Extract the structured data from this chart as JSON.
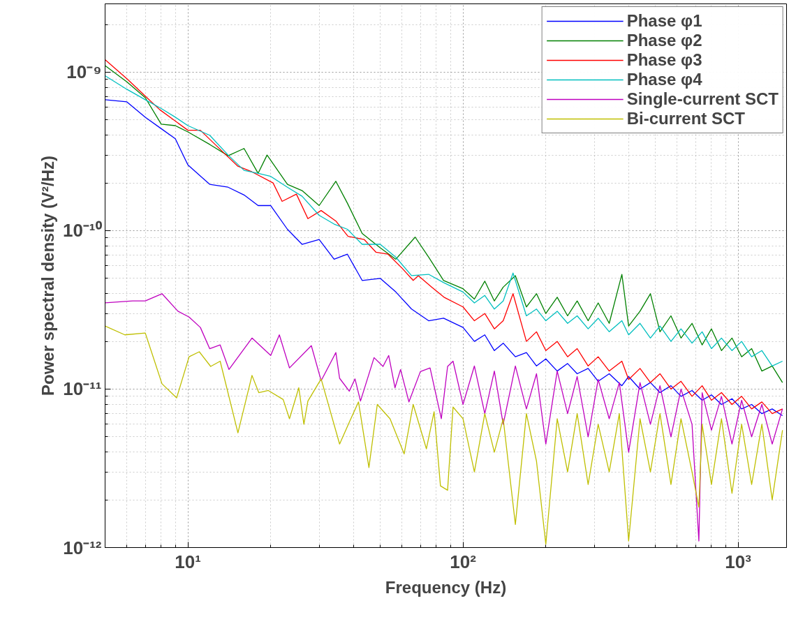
{
  "chart_data": {
    "type": "line",
    "xlabel": "Frequency (Hz)",
    "ylabel": "Power spectral density (V²/Hz)",
    "log": "xy",
    "grid": true,
    "legend": "top right",
    "line_style": "solid",
    "marker": "none",
    "xlim": [
      5,
      1500
    ],
    "ylim": [
      1e-12,
      2.7e-09
    ],
    "xticks": [
      {
        "value": 10,
        "label": "10¹"
      },
      {
        "value": 100,
        "label": "10²"
      },
      {
        "value": 1000,
        "label": "10³"
      }
    ],
    "yticks": [
      {
        "value": 1e-12,
        "label": "10⁻¹²"
      },
      {
        "value": 1e-11,
        "label": "10⁻¹¹"
      },
      {
        "value": 1e-10,
        "label": "10⁻¹⁰"
      },
      {
        "value": 1e-09,
        "label": "10⁻⁹"
      }
    ],
    "series": [
      {
        "name": "Phase φ1",
        "color": "#0000ff",
        "x": [
          5,
          6,
          7,
          8,
          9,
          10,
          12,
          14,
          16,
          18,
          20,
          23,
          26,
          30,
          34,
          38,
          43,
          50,
          57,
          65,
          75,
          85,
          100,
          110,
          120,
          130,
          140,
          155,
          170,
          185,
          200,
          220,
          240,
          260,
          285,
          310,
          340,
          378,
          400,
          440,
          480,
          520,
          570,
          620,
          680,
          740,
          800,
          870,
          950,
          1030,
          1120,
          1220,
          1330,
          1450
        ],
        "values": [
          6.7e-10,
          6.5e-10,
          5.2e-10,
          4.4e-10,
          3.8e-10,
          2.6e-10,
          1.96e-10,
          1.88e-10,
          1.68e-10,
          1.44e-10,
          1.44e-10,
          1.02e-10,
          8.2e-11,
          8.8e-11,
          6.6e-11,
          7.1e-11,
          4.85e-11,
          5e-11,
          4.1e-11,
          3.2e-11,
          2.7e-11,
          2.8e-11,
          2.45e-11,
          2e-11,
          2.2e-11,
          1.75e-11,
          1.95e-11,
          1.6e-11,
          1.7e-11,
          1.4e-11,
          1.55e-11,
          1.3e-11,
          1.45e-11,
          1.25e-11,
          1.35e-11,
          1.12e-11,
          1.25e-11,
          1.05e-11,
          1.2e-11,
          1e-11,
          1.1e-11,
          9.5e-12,
          1.05e-11,
          9e-12,
          9.8e-12,
          8.5e-12,
          9.2e-12,
          8e-12,
          8.7e-12,
          7.5e-12,
          8e-12,
          7e-12,
          7.5e-12,
          6.8e-12
        ]
      },
      {
        "name": "Phase φ2",
        "color": "#008000",
        "x": [
          5,
          6,
          7,
          8,
          9,
          10,
          12,
          14,
          16,
          18,
          19.4,
          23,
          26,
          30,
          34.5,
          38,
          43,
          50,
          57,
          67,
          75,
          85,
          100,
          110,
          120,
          130,
          140,
          155,
          170,
          185,
          200,
          220,
          240,
          260,
          285,
          310,
          340,
          378,
          400,
          440,
          480,
          520,
          570,
          620,
          680,
          740,
          800,
          870,
          950,
          1030,
          1120,
          1220,
          1330,
          1450
        ],
        "values": [
          1.1e-09,
          8.7e-10,
          6.9e-10,
          4.7e-10,
          4.6e-10,
          4.2e-10,
          3.5e-10,
          2.97e-10,
          3.3e-10,
          2.3e-10,
          3e-10,
          1.96e-10,
          1.79e-10,
          1.44e-10,
          2.05e-10,
          1.49e-10,
          9.6e-11,
          7.8e-11,
          6.6e-11,
          9.1e-11,
          6.8e-11,
          4.85e-11,
          4.3e-11,
          3.7e-11,
          4.8e-11,
          3.6e-11,
          4.4e-11,
          5.2e-11,
          3.3e-11,
          4e-11,
          3e-11,
          3.8e-11,
          2.9e-11,
          3.6e-11,
          2.7e-11,
          3.5e-11,
          2.6e-11,
          5.3e-11,
          2.5e-11,
          3.1e-11,
          4e-11,
          2.3e-11,
          2.9e-11,
          2.1e-11,
          2.6e-11,
          1.9e-11,
          2.4e-11,
          1.75e-11,
          2.1e-11,
          1.6e-11,
          1.8e-11,
          1.3e-11,
          1.4e-11,
          1.1e-11
        ]
      },
      {
        "name": "Phase φ3",
        "color": "#ff0000",
        "x": [
          5,
          6,
          7.1,
          7.9,
          10,
          11.1,
          13.5,
          15.2,
          17.1,
          20.4,
          22,
          24.8,
          27.3,
          30.5,
          34.5,
          38.2,
          43.7,
          48.3,
          53.4,
          60,
          65.9,
          68.8,
          77,
          85.3,
          100,
          110,
          120,
          130,
          140,
          152,
          170,
          185,
          200,
          220,
          240,
          260,
          285,
          310,
          340,
          378,
          400,
          440,
          480,
          520,
          570,
          620,
          680,
          740,
          800,
          870,
          950,
          1030,
          1120,
          1220,
          1330,
          1450
        ],
        "values": [
          1.2e-09,
          9.1e-10,
          6.9e-10,
          5.8e-10,
          4.3e-10,
          4.3e-10,
          3.1e-10,
          2.55e-10,
          2.35e-10,
          2e-10,
          1.53e-10,
          1.7e-10,
          1.19e-10,
          1.34e-10,
          1.15e-10,
          9.2e-11,
          8.8e-11,
          7.3e-11,
          7.1e-11,
          5.8e-11,
          4.85e-11,
          5.2e-11,
          4.4e-11,
          3.8e-11,
          3.3e-11,
          2.7e-11,
          3e-11,
          2.4e-11,
          2.7e-11,
          4e-11,
          2e-11,
          2.3e-11,
          1.75e-11,
          2e-11,
          1.6e-11,
          1.8e-11,
          1.4e-11,
          1.6e-11,
          1.3e-11,
          1.5e-11,
          1.15e-11,
          1.35e-11,
          1.1e-11,
          1.25e-11,
          1e-11,
          1.12e-11,
          9e-12,
          1.05e-11,
          8.5e-12,
          9.5e-12,
          8e-12,
          9e-12,
          7.5e-12,
          8.3e-12,
          7e-12,
          7.5e-12
        ]
      },
      {
        "name": "Phase φ4",
        "color": "#00bfbf",
        "x": [
          5,
          6,
          7,
          8,
          9,
          10,
          12,
          14,
          16,
          18,
          20,
          23,
          26,
          30,
          34,
          38,
          43,
          50,
          57,
          65,
          75,
          85,
          100,
          110,
          120,
          130,
          140,
          152,
          170,
          185,
          200,
          220,
          240,
          260,
          285,
          310,
          340,
          378,
          400,
          440,
          480,
          520,
          570,
          620,
          680,
          740,
          800,
          870,
          950,
          1030,
          1120,
          1220,
          1330,
          1450
        ],
        "values": [
          9.5e-10,
          7.8e-10,
          6.7e-10,
          5.9e-10,
          5.2e-10,
          4.6e-10,
          4e-10,
          3e-10,
          2.4e-10,
          2.3e-10,
          2.2e-10,
          1.88e-10,
          1.65e-10,
          1.25e-10,
          1.1e-10,
          1.02e-10,
          8.2e-11,
          8.2e-11,
          6.8e-11,
          5.2e-11,
          5.3e-11,
          4.7e-11,
          4.1e-11,
          3.5e-11,
          3.9e-11,
          3.2e-11,
          3.6e-11,
          5.4e-11,
          2.9e-11,
          3.2e-11,
          2.7e-11,
          3.1e-11,
          2.6e-11,
          2.9e-11,
          2.4e-11,
          2.8e-11,
          2.3e-11,
          2.7e-11,
          2.2e-11,
          2.6e-11,
          2.1e-11,
          2.5e-11,
          2e-11,
          2.4e-11,
          1.95e-11,
          2.3e-11,
          1.8e-11,
          2.1e-11,
          1.75e-11,
          2e-11,
          1.6e-11,
          1.75e-11,
          1.4e-11,
          1.5e-11
        ]
      },
      {
        "name": "Single-current SCT",
        "color": "#bf00bf",
        "x": [
          5,
          6.3,
          7,
          8.05,
          9.2,
          10.1,
          11.1,
          12,
          13.1,
          14.1,
          17.1,
          20,
          21.5,
          23.4,
          28.1,
          30.5,
          34.5,
          35.6,
          38.6,
          40.5,
          42.4,
          47.5,
          51.2,
          53.7,
          56.6,
          59.3,
          63.6,
          70,
          75.9,
          83.4,
          87.9,
          92,
          100,
          110,
          120,
          130,
          140,
          155,
          170,
          185,
          200,
          220,
          240,
          260,
          285,
          310,
          340,
          370,
          400,
          440,
          480,
          520,
          570,
          620,
          680,
          720,
          740,
          800,
          870,
          950,
          1030,
          1120,
          1220,
          1330,
          1450
        ],
        "values": [
          3.5e-11,
          3.6e-11,
          3.6e-11,
          4e-11,
          3.1e-11,
          2.85e-11,
          2.45e-11,
          1.8e-11,
          1.9e-11,
          1.33e-11,
          2.1e-11,
          1.63e-11,
          2.2e-11,
          1.36e-11,
          1.88e-11,
          1.13e-11,
          1.7e-11,
          1.17e-11,
          9.7e-12,
          1.16e-11,
          8.4e-12,
          1.58e-11,
          1.39e-11,
          1.63e-11,
          1.02e-11,
          1.33e-11,
          8.3e-12,
          1.29e-11,
          1.36e-11,
          6.5e-12,
          1.39e-11,
          1.5e-11,
          8e-12,
          1.4e-11,
          7e-12,
          1.3e-11,
          6e-12,
          1.4e-11,
          7.5e-12,
          1.25e-11,
          4.5e-12,
          1.3e-11,
          7e-12,
          1.2e-11,
          5e-12,
          1.15e-11,
          6.5e-12,
          1.1e-11,
          4e-12,
          1.1e-11,
          6e-12,
          1.05e-11,
          5e-12,
          1e-11,
          6e-12,
          1.1e-12,
          9.5e-12,
          5.5e-12,
          9e-12,
          4.5e-12,
          8.5e-12,
          5e-12,
          8e-12,
          4.5e-12,
          7.5e-12
        ]
      },
      {
        "name": "Bi-current SCT",
        "color": "#bfbf00",
        "x": [
          5,
          5.9,
          7,
          8.05,
          9.1,
          10.1,
          11,
          12.1,
          13.1,
          15.2,
          17.1,
          18.1,
          19.6,
          22.2,
          23.4,
          25.3,
          26.4,
          27.3,
          30.5,
          35.6,
          38.8,
          41.7,
          45.5,
          48.8,
          54.3,
          61.1,
          65.9,
          73.6,
          78.5,
          82.8,
          87.9,
          92,
          100,
          110,
          120,
          130,
          140,
          155,
          170,
          185,
          200,
          220,
          240,
          260,
          285,
          310,
          340,
          370,
          400,
          440,
          480,
          520,
          570,
          620,
          680,
          720,
          740,
          800,
          870,
          950,
          1030,
          1120,
          1220,
          1330,
          1450
        ],
        "values": [
          2.5e-11,
          2.2e-11,
          2.26e-11,
          1.08e-11,
          8.8e-12,
          1.6e-11,
          1.72e-11,
          1.39e-11,
          1.5e-11,
          5.3e-12,
          1.22e-11,
          9.5e-12,
          9.8e-12,
          8.6e-12,
          6.5e-12,
          1.02e-11,
          6e-12,
          8.4e-12,
          1.16e-11,
          4.5e-12,
          6.3e-12,
          8.3e-12,
          3.2e-12,
          8e-12,
          6.5e-12,
          3.9e-12,
          8e-12,
          4.2e-12,
          7.2e-12,
          2.45e-12,
          2.3e-12,
          7.7e-12,
          6.5e-12,
          3e-12,
          7e-12,
          4e-12,
          6.5e-12,
          1.4e-12,
          7e-12,
          3.5e-12,
          1.05e-12,
          6.5e-12,
          3e-12,
          7e-12,
          2.5e-12,
          6e-12,
          3e-12,
          7e-12,
          1.1e-12,
          6.5e-12,
          3e-12,
          7e-12,
          2.5e-12,
          6.5e-12,
          3e-12,
          1.8e-12,
          6e-12,
          2.5e-12,
          6.5e-12,
          2.2e-12,
          6e-12,
          2.5e-12,
          6e-12,
          2e-12,
          5.5e-12
        ]
      }
    ]
  }
}
